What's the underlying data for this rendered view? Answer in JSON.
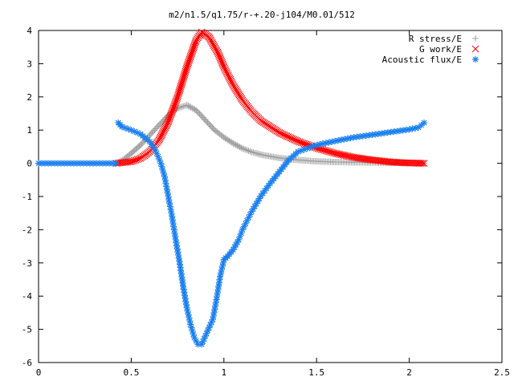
{
  "chart_data": {
    "type": "scatter",
    "title": "m2/n1.5/q1.75/r-+.20-j104/M0.01/512",
    "xlabel": "",
    "ylabel": "",
    "xlim": [
      0,
      2.5
    ],
    "ylim": [
      -6,
      4
    ],
    "x_ticks": [
      "0",
      "0.5",
      "1",
      "1.5",
      "2",
      "2.5"
    ],
    "y_ticks": [
      "-6",
      "-5",
      "-4",
      "-3",
      "-2",
      "-1",
      "0",
      "1",
      "2",
      "3",
      "4"
    ],
    "legend_position": "top-right",
    "grid": false,
    "series": [
      {
        "name": "R stress/E",
        "marker": "plus",
        "color": "#a0a0a0",
        "points": [
          [
            0.42,
            0.0
          ],
          [
            0.46,
            0.12
          ],
          [
            0.5,
            0.3
          ],
          [
            0.55,
            0.55
          ],
          [
            0.6,
            0.85
          ],
          [
            0.65,
            1.15
          ],
          [
            0.7,
            1.45
          ],
          [
            0.75,
            1.66
          ],
          [
            0.8,
            1.75
          ],
          [
            0.85,
            1.6
          ],
          [
            0.9,
            1.3
          ],
          [
            0.95,
            1.0
          ],
          [
            1.0,
            0.78
          ],
          [
            1.05,
            0.6
          ],
          [
            1.1,
            0.45
          ],
          [
            1.15,
            0.34
          ],
          [
            1.2,
            0.26
          ],
          [
            1.3,
            0.16
          ],
          [
            1.4,
            0.1
          ],
          [
            1.5,
            0.06
          ],
          [
            1.6,
            0.04
          ],
          [
            1.8,
            0.02
          ],
          [
            2.0,
            0.01
          ],
          [
            2.08,
            0.0
          ]
        ]
      },
      {
        "name": "G work/E",
        "marker": "cross",
        "color": "#ff0000",
        "points": [
          [
            0.42,
            0.0
          ],
          [
            0.5,
            0.05
          ],
          [
            0.55,
            0.15
          ],
          [
            0.6,
            0.35
          ],
          [
            0.65,
            0.7
          ],
          [
            0.7,
            1.25
          ],
          [
            0.75,
            2.0
          ],
          [
            0.8,
            2.9
          ],
          [
            0.85,
            3.7
          ],
          [
            0.88,
            3.95
          ],
          [
            0.92,
            3.8
          ],
          [
            0.97,
            3.3
          ],
          [
            1.0,
            2.9
          ],
          [
            1.05,
            2.35
          ],
          [
            1.1,
            1.9
          ],
          [
            1.15,
            1.55
          ],
          [
            1.2,
            1.28
          ],
          [
            1.3,
            0.92
          ],
          [
            1.4,
            0.66
          ],
          [
            1.5,
            0.46
          ],
          [
            1.6,
            0.3
          ],
          [
            1.7,
            0.18
          ],
          [
            1.8,
            0.1
          ],
          [
            1.9,
            0.04
          ],
          [
            2.0,
            0.01
          ],
          [
            2.08,
            0.0
          ]
        ]
      },
      {
        "name": "Acoustic flux/E",
        "marker": "star",
        "color": "#1a80f0",
        "points": [
          [
            0.43,
            1.22
          ],
          [
            0.45,
            1.1
          ],
          [
            0.5,
            1.0
          ],
          [
            0.55,
            0.88
          ],
          [
            0.6,
            0.65
          ],
          [
            0.63,
            0.4
          ],
          [
            0.66,
            0.0
          ],
          [
            0.68,
            -0.4
          ],
          [
            0.7,
            -1.0
          ],
          [
            0.72,
            -1.6
          ],
          [
            0.74,
            -2.3
          ],
          [
            0.76,
            -2.95
          ],
          [
            0.78,
            -3.7
          ],
          [
            0.8,
            -4.35
          ],
          [
            0.82,
            -4.85
          ],
          [
            0.84,
            -5.25
          ],
          [
            0.86,
            -5.45
          ],
          [
            0.88,
            -5.45
          ],
          [
            0.9,
            -5.2
          ],
          [
            0.92,
            -4.95
          ],
          [
            0.94,
            -4.7
          ],
          [
            0.96,
            -4.1
          ],
          [
            0.98,
            -3.4
          ],
          [
            1.0,
            -2.9
          ],
          [
            1.02,
            -2.8
          ],
          [
            1.05,
            -2.6
          ],
          [
            1.08,
            -2.3
          ],
          [
            1.1,
            -2.0
          ],
          [
            1.15,
            -1.45
          ],
          [
            1.2,
            -0.98
          ],
          [
            1.25,
            -0.6
          ],
          [
            1.3,
            -0.25
          ],
          [
            1.35,
            0.1
          ],
          [
            1.4,
            0.35
          ],
          [
            1.5,
            0.55
          ],
          [
            1.6,
            0.67
          ],
          [
            1.7,
            0.78
          ],
          [
            1.8,
            0.86
          ],
          [
            1.9,
            0.94
          ],
          [
            2.0,
            1.02
          ],
          [
            2.05,
            1.08
          ],
          [
            2.08,
            1.22
          ]
        ]
      }
    ]
  }
}
